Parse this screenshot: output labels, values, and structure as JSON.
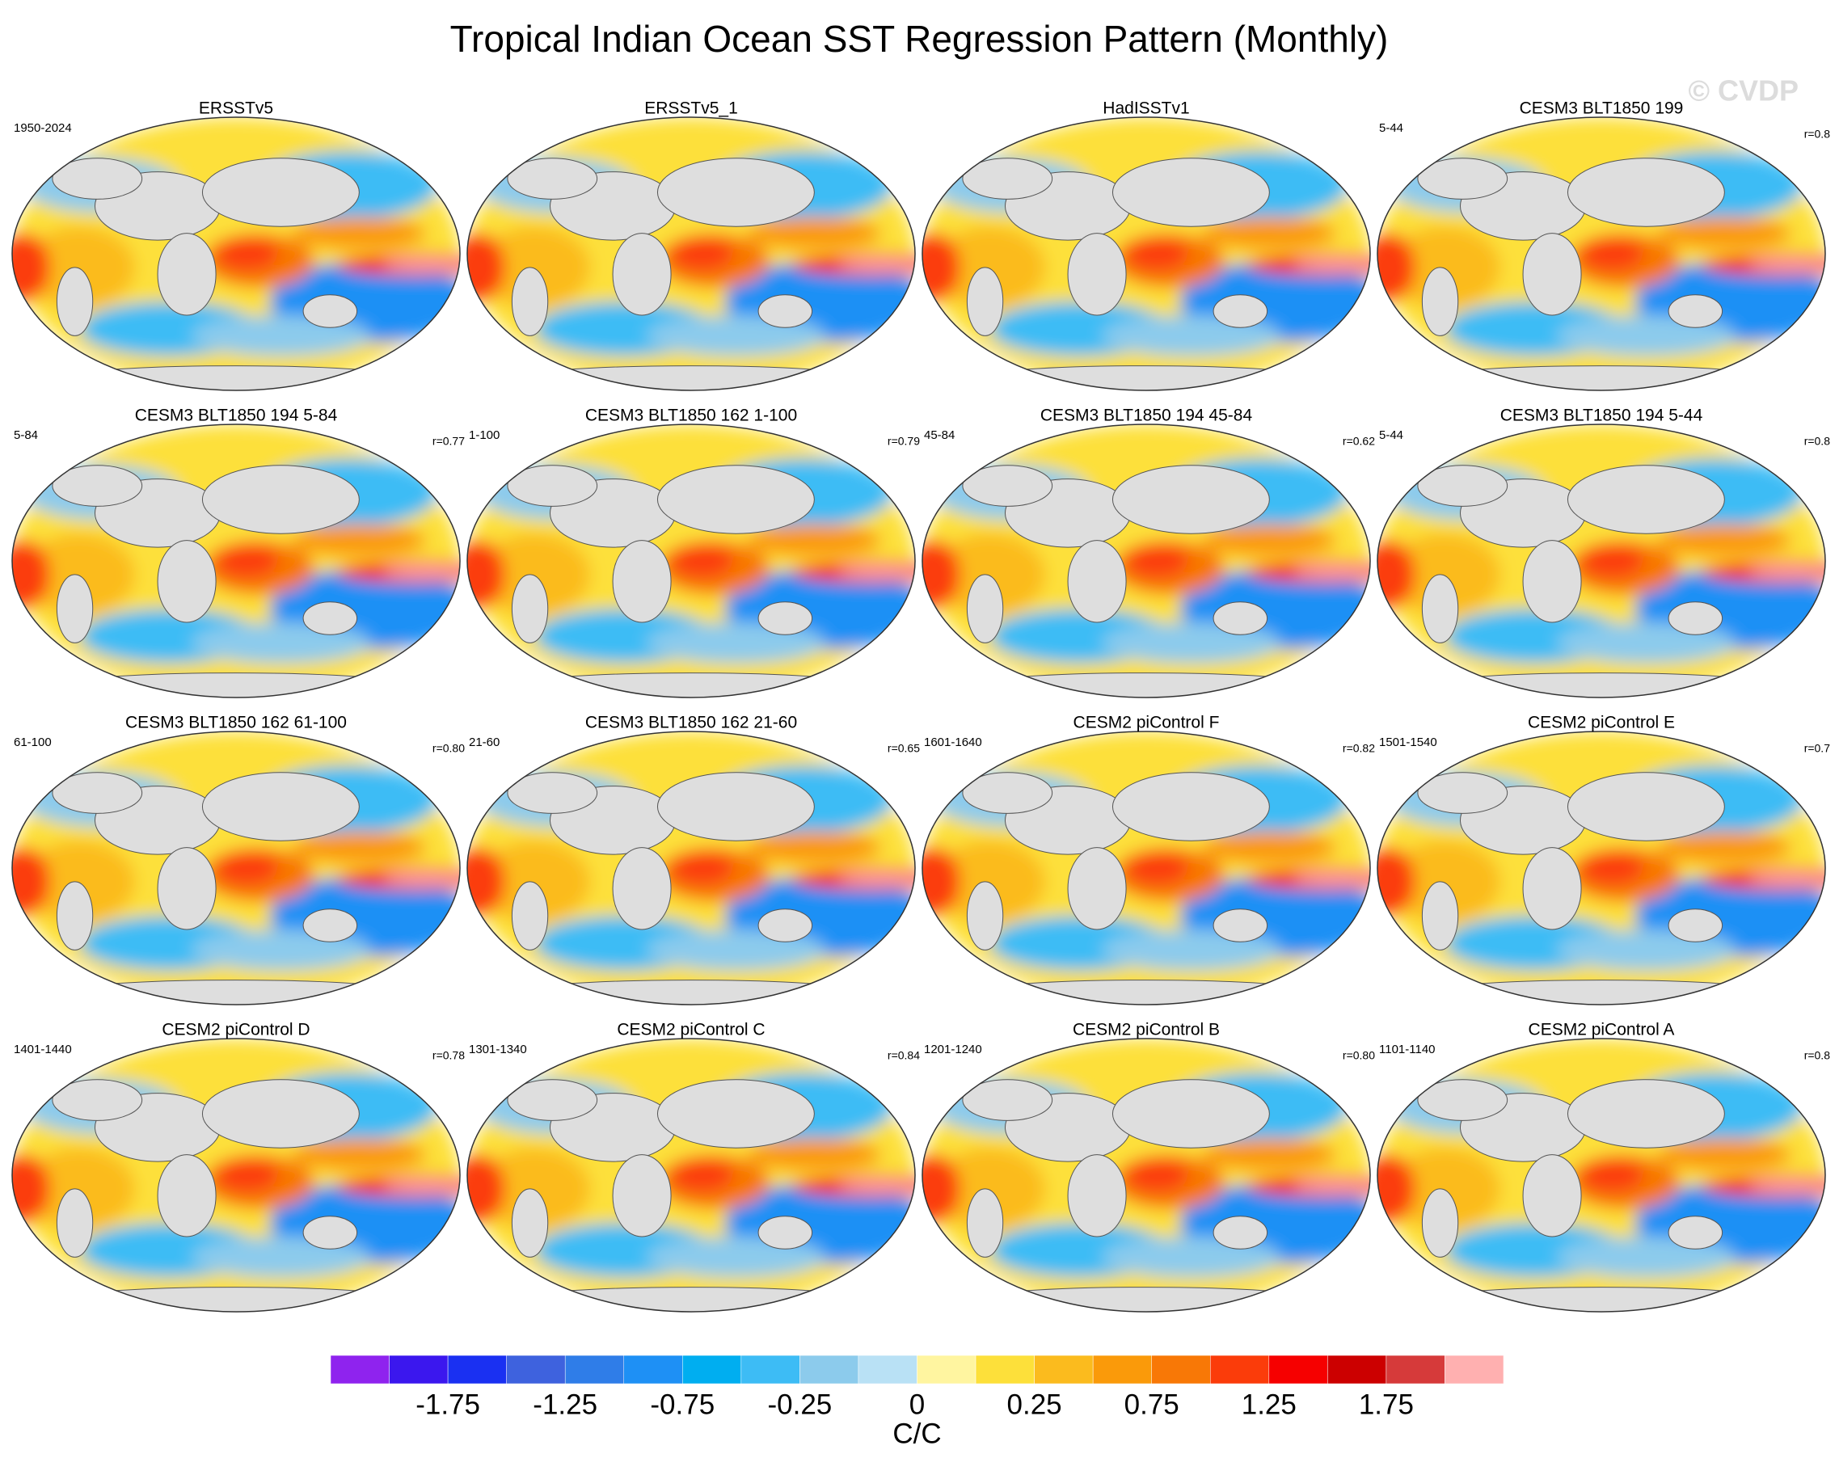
{
  "title": "Tropical Indian Ocean SST Regression Pattern (Monthly)",
  "watermark": "© CVDP",
  "panels": [
    {
      "title": "ERSSTv5",
      "left": "1950-2024"
    },
    {
      "title": "ERSSTv5_1"
    },
    {
      "title": "HadISSTv1"
    },
    {
      "title": "CESM3 BLT1850 199",
      "left": "5-44",
      "right": "r=0.8"
    },
    {
      "title": "CESM3 BLT1850 194 5-84",
      "left": "5-84",
      "right": "r=0.77"
    },
    {
      "title": "CESM3 BLT1850 162 1-100",
      "left": "1-100",
      "right": "r=0.79"
    },
    {
      "title": "CESM3 BLT1850 194 45-84",
      "left": "45-84",
      "right": "r=0.62"
    },
    {
      "title": "CESM3 BLT1850 194 5-44",
      "left": "5-44",
      "right": "r=0.8"
    },
    {
      "title": "CESM3 BLT1850 162 61-100",
      "left": "61-100",
      "right": "r=0.80"
    },
    {
      "title": "CESM3 BLT1850 162 21-60",
      "left": "21-60",
      "right": "r=0.65"
    },
    {
      "title": "CESM2 piControl F",
      "left": "1601-1640",
      "right": "r=0.82"
    },
    {
      "title": "CESM2 piControl E",
      "left": "1501-1540",
      "right": "r=0.7"
    },
    {
      "title": "CESM2 piControl D",
      "left": "1401-1440",
      "right": "r=0.78"
    },
    {
      "title": "CESM2 piControl C",
      "left": "1301-1340",
      "right": "r=0.84"
    },
    {
      "title": "CESM2 piControl B",
      "left": "1201-1240",
      "right": "r=0.80"
    },
    {
      "title": "CESM2 piControl A",
      "left": "1101-1140",
      "right": "r=0.8"
    }
  ],
  "colorbar": {
    "colors": [
      "#8f23ee",
      "#3b17ee",
      "#1a30f2",
      "#3e62de",
      "#2f7de8",
      "#1e90f5",
      "#00aef0",
      "#3dbcf5",
      "#8ccbec",
      "#b9e1f5",
      "#fff5a0",
      "#fde03a",
      "#fbbb1e",
      "#fa9a0a",
      "#f87806",
      "#fb3c0a",
      "#f60000",
      "#cc0000",
      "#d63a3a",
      "#ffb0b0"
    ],
    "levels": [
      -2,
      -1.75,
      -1.5,
      -1.25,
      -1,
      -0.75,
      -0.5,
      -0.25,
      -0.1,
      0,
      0.1,
      0.25,
      0.5,
      0.75,
      1,
      1.25,
      1.5,
      1.75,
      2
    ],
    "ticks": [
      -1.75,
      -1.25,
      -0.75,
      -0.25,
      0,
      0.25,
      0.75,
      1.25,
      1.75
    ],
    "label": "C/C"
  }
}
